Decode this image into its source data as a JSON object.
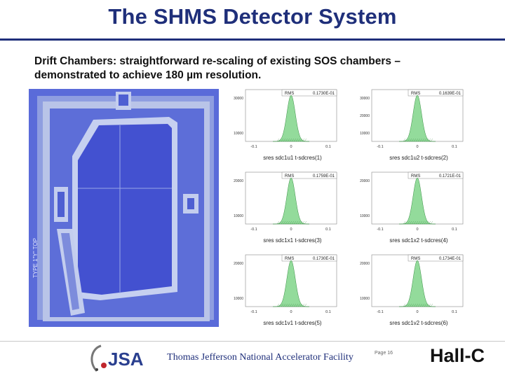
{
  "slide": {
    "title": "The SHMS Detector System",
    "desc_line1": "Drift Chambers: straightforward re-scaling of existing SOS chambers –",
    "desc_line2": "demonstrated to achieve 180 µm resolution."
  },
  "chamber_photo": {
    "side_text": "TYPE 1\"Y\" TOP",
    "colors": {
      "background": "#5a6bd9",
      "frame": "#b9c4e8",
      "active": "#4351d0"
    }
  },
  "histograms": {
    "color": "#6fcf7a",
    "panels": [
      {
        "rms_label": "RMS",
        "rms_value": "0.1730E-01",
        "caption": "sres sdc1u1 t-sdcres(1)",
        "y_ticks": [
          "30000",
          "10000"
        ],
        "x_ticks": [
          "-0.1",
          "0",
          "0.1"
        ]
      },
      {
        "rms_label": "RMS",
        "rms_value": "0.1639E-01",
        "caption": "sres sdc1u2 t-sdcres(2)",
        "y_ticks": [
          "30000",
          "20000",
          "10000"
        ],
        "x_ticks": [
          "-0.1",
          "0",
          "0.1"
        ]
      },
      {
        "rms_label": "RMS",
        "rms_value": "0.1759E-01",
        "caption": "sres sdc1x1 t-sdcres(3)",
        "y_ticks": [
          "20000",
          "10000"
        ],
        "x_ticks": [
          "-0.1",
          "0",
          "0.1"
        ]
      },
      {
        "rms_label": "RMS",
        "rms_value": "0.1721E-01",
        "caption": "sres sdc1x2 t-sdcres(4)",
        "y_ticks": [
          "20000",
          "10000"
        ],
        "x_ticks": [
          "-0.1",
          "0",
          "0.1"
        ]
      },
      {
        "rms_label": "RMS",
        "rms_value": "0.1730E-01",
        "caption": "sres sdc1v1 t-sdcres(5)",
        "y_ticks": [
          "20000",
          "10000"
        ],
        "x_ticks": [
          "-0.1",
          "0",
          "0.1"
        ]
      },
      {
        "rms_label": "RMS",
        "rms_value": "0.1734E-01",
        "caption": "sres sdc1v2 t-sdcres(6)",
        "y_ticks": [
          "20000",
          "10000"
        ],
        "x_ticks": [
          "-0.1",
          "0",
          "0.1"
        ]
      }
    ]
  },
  "footer": {
    "logo_text": "JSA",
    "lab_name": "Thomas Jefferson National Accelerator Facility",
    "page": "Page 16",
    "hall": "Hall-C"
  }
}
